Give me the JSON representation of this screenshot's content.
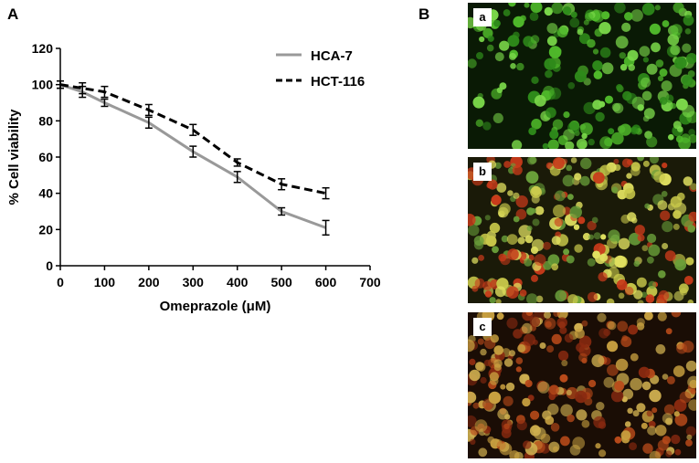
{
  "panel_labels": {
    "a": "A",
    "b": "B"
  },
  "chart_data": {
    "type": "line",
    "xlabel": "Omeprazole (μM)",
    "ylabel": "% Cell viability",
    "xlim": [
      0,
      700
    ],
    "ylim": [
      0,
      120
    ],
    "xticks": [
      0,
      100,
      200,
      300,
      400,
      500,
      600,
      700
    ],
    "yticks": [
      0,
      20,
      40,
      60,
      80,
      100,
      120
    ],
    "grid": false,
    "legend_position": "top-right",
    "x": [
      0,
      50,
      100,
      200,
      300,
      400,
      500,
      600
    ],
    "series": [
      {
        "name": "HCA-7",
        "style": "solid",
        "color": "#999999",
        "values": [
          100,
          96,
          90,
          79,
          63,
          49,
          30,
          21
        ],
        "errors": [
          2,
          3,
          2,
          3,
          3,
          3,
          2,
          4
        ]
      },
      {
        "name": "HCT-116",
        "style": "dashed",
        "color": "#000000",
        "values": [
          100,
          98,
          96,
          86,
          75,
          57,
          45,
          40
        ],
        "errors": [
          2,
          3,
          3,
          3,
          3,
          2,
          3,
          3
        ]
      }
    ]
  },
  "micrographs": [
    {
      "label": "a",
      "palette": [
        "#4fb82a",
        "#7bd94a",
        "#2e8a1a"
      ],
      "background": "#0a1a05"
    },
    {
      "label": "b",
      "palette": [
        "#c8c84a",
        "#6aa03a",
        "#c83a1a",
        "#e0e060"
      ],
      "background": "#1a1a08"
    },
    {
      "label": "c",
      "palette": [
        "#b84a1a",
        "#c8a040",
        "#8a2a10",
        "#d0b050"
      ],
      "background": "#1a0d05"
    }
  ]
}
